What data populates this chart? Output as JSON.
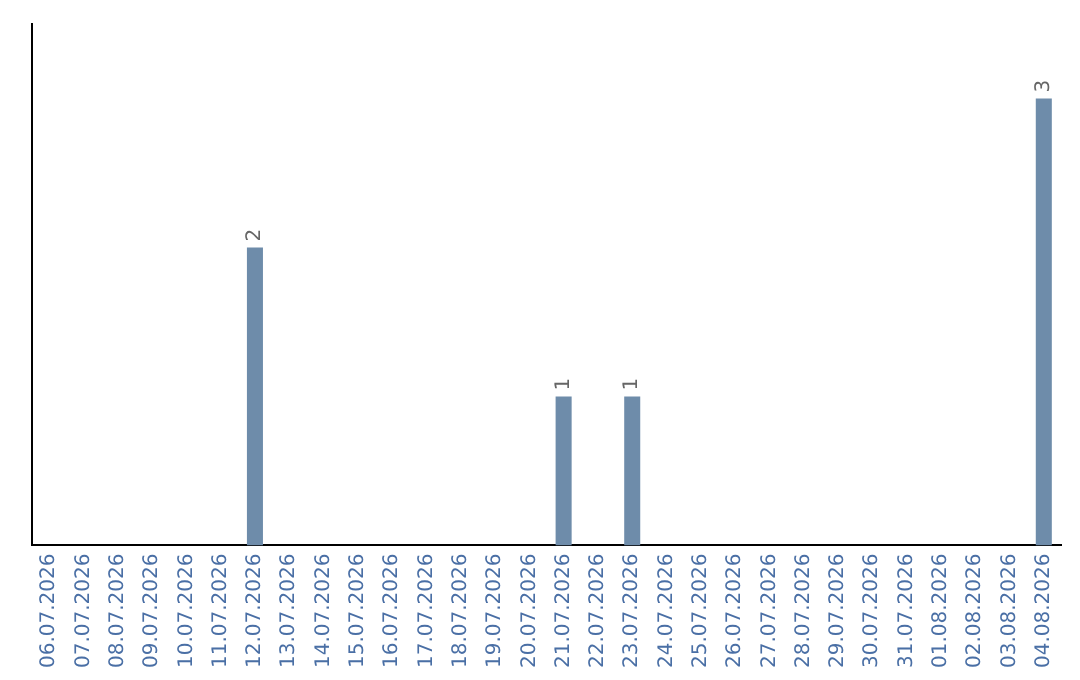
{
  "chart_data": {
    "type": "bar",
    "categories": [
      "06.07.2026",
      "07.07.2026",
      "08.07.2026",
      "09.07.2026",
      "10.07.2026",
      "11.07.2026",
      "12.07.2026",
      "13.07.2026",
      "14.07.2026",
      "15.07.2026",
      "16.07.2026",
      "17.07.2026",
      "18.07.2026",
      "19.07.2026",
      "20.07.2026",
      "21.07.2026",
      "22.07.2026",
      "23.07.2026",
      "24.07.2026",
      "25.07.2026",
      "26.07.2026",
      "27.07.2026",
      "28.07.2026",
      "29.07.2026",
      "30.07.2026",
      "31.07.2026",
      "01.08.2026",
      "02.08.2026",
      "03.08.2026",
      "04.08.2026"
    ],
    "values": [
      0,
      0,
      0,
      0,
      0,
      0,
      2,
      0,
      0,
      0,
      0,
      0,
      0,
      0,
      0,
      1,
      0,
      1,
      0,
      0,
      0,
      0,
      0,
      0,
      0,
      0,
      0,
      0,
      0,
      3
    ],
    "value_labels": [
      null,
      null,
      null,
      null,
      null,
      null,
      "2",
      null,
      null,
      null,
      null,
      null,
      null,
      null,
      null,
      "1",
      null,
      "1",
      null,
      null,
      null,
      null,
      null,
      null,
      null,
      null,
      null,
      null,
      null,
      "3"
    ],
    "color": "#6e8caa",
    "grid": false,
    "legend": false
  }
}
